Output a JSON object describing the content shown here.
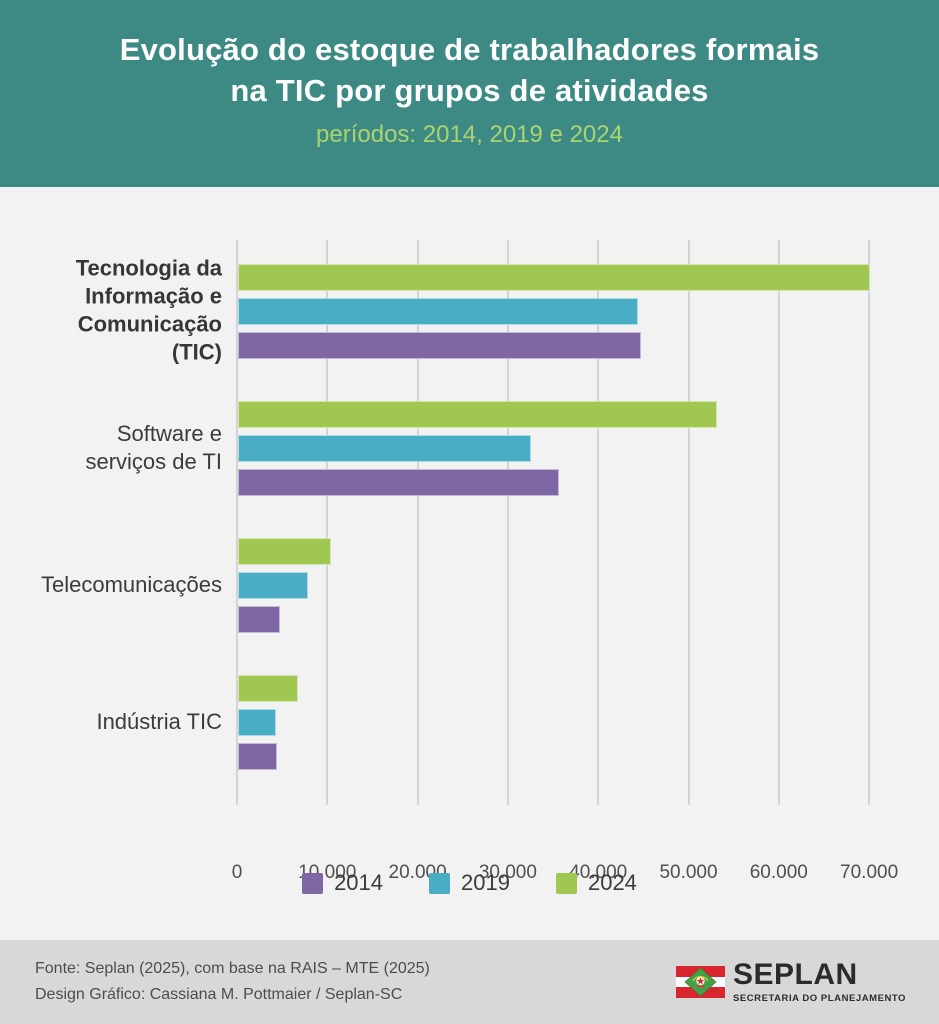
{
  "header": {
    "title_line1": "Evolução do estoque de trabalhadores formais",
    "title_line2": "na TIC por grupos de atividades",
    "subtitle": "períodos: 2014, 2019 e 2024",
    "bg_color": "#3d8a85",
    "title_color": "#ffffff",
    "subtitle_color": "#aad470"
  },
  "chart_data": {
    "type": "bar",
    "orientation": "horizontal",
    "title": "Evolução do estoque de trabalhadores formais na TIC por grupos de atividades",
    "subtitle": "períodos: 2014, 2019 e 2024",
    "categories": [
      "Tecnologia da Informação e Comunicação (TIC)",
      "Software e serviços de TI",
      "Telecomunicações",
      "Indústria TIC"
    ],
    "series": [
      {
        "name": "2014",
        "color": "#7f66a5",
        "values": [
          44600,
          35600,
          4700,
          4350
        ]
      },
      {
        "name": "2019",
        "color": "#4aadc6",
        "values": [
          44300,
          32500,
          7800,
          4200
        ]
      },
      {
        "name": "2024",
        "color": "#a0c751",
        "values": [
          70000,
          53100,
          10300,
          6650
        ]
      }
    ],
    "bar_order_top_to_bottom": [
      "2024",
      "2019",
      "2014"
    ],
    "xlim": [
      0,
      70000
    ],
    "x_tick_values": [
      0,
      10000,
      20000,
      30000,
      40000,
      50000,
      60000,
      70000
    ],
    "x_tick_labels": [
      "0",
      "10.000",
      "20.000",
      "30.000",
      "40.000",
      "50.000",
      "60.000",
      "70.000"
    ],
    "grid": true,
    "gridline_color": "#d4d4d4",
    "plot_bg": "#f2f2f2",
    "legend_position": "bottom"
  },
  "categories_display": [
    {
      "lines": "Tecnologia da\nInformação e\nComunicação\n(TIC)",
      "bold": true
    },
    {
      "lines": "Software e\nserviços de TI",
      "bold": false
    },
    {
      "lines": "Telecomunicações",
      "bold": false
    },
    {
      "lines": "Indústria TIC",
      "bold": false
    }
  ],
  "legend": [
    {
      "label": "2014",
      "color": "#7f66a5"
    },
    {
      "label": "2019",
      "color": "#4aadc6"
    },
    {
      "label": "2024",
      "color": "#a0c751"
    }
  ],
  "footer": {
    "source_line1": "Fonte: Seplan (2025), com base na RAIS – MTE (2025)",
    "source_line2": "Design Gráfico: Cassiana M. Pottmaier / Seplan-SC",
    "logo_title": "SEPLAN",
    "logo_subtitle": "SECRETARIA DO PLANEJAMENTO",
    "flag_icon": "santa-catarina-flag",
    "bg_color": "#d8d8d8"
  }
}
